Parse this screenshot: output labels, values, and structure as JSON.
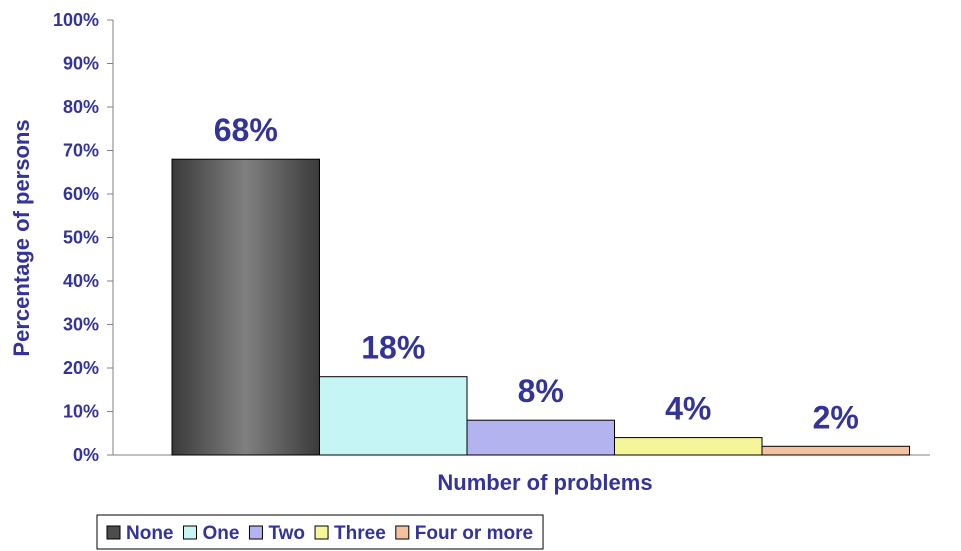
{
  "chart_data": {
    "type": "bar",
    "categories": [
      "None",
      "One",
      "Two",
      "Three",
      "Four or more"
    ],
    "values": [
      68,
      18,
      8,
      4,
      2
    ],
    "data_labels": [
      "68%",
      "18%",
      "8%",
      "4%",
      "2%"
    ],
    "title": "",
    "xlabel": "Number of problems",
    "ylabel": "Percentage of persons",
    "ylim": [
      0,
      100
    ],
    "yticks": [
      "0%",
      "10%",
      "20%",
      "30%",
      "40%",
      "50%",
      "60%",
      "70%",
      "80%",
      "90%",
      "100%"
    ],
    "grid": false,
    "legend_position": "bottom-left",
    "colors": [
      "#4d4d4d",
      "#c6f5f5",
      "#b3b3f0",
      "#f5f59a",
      "#f5c2a0"
    ],
    "text_color": "#333399"
  }
}
